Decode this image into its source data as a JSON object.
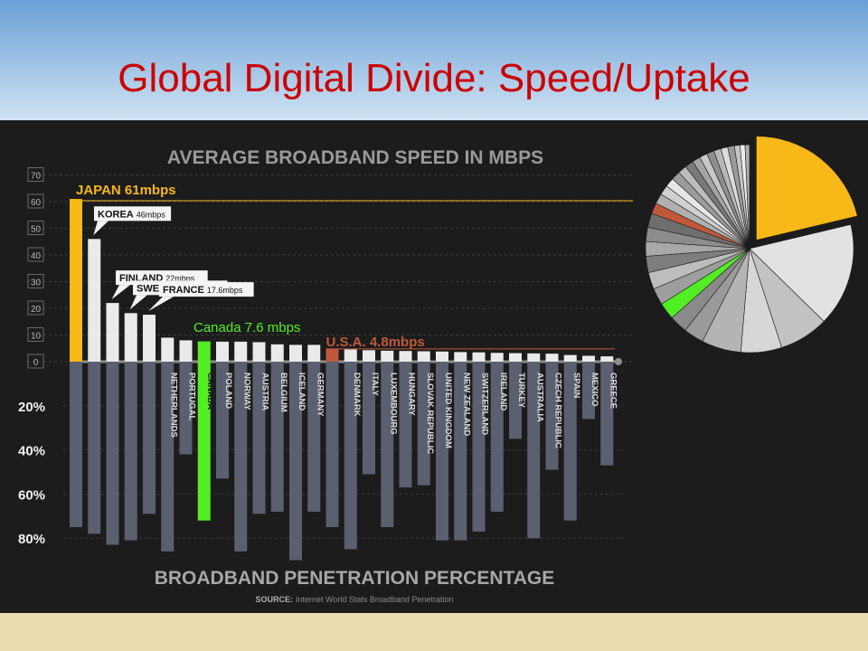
{
  "slide": {
    "title": "Global Digital Divide: Speed/Uptake"
  },
  "chart_data": {
    "type": "bar",
    "title": "AVERAGE BROADBAND SPEED IN MBPS",
    "bottom_title": "BROADBAND PENETRATION PERCENTAGE",
    "source_label": "SOURCE:",
    "source_text": "Internet World Stats Broadband Penetration",
    "speed_ticks": [
      "70",
      "60",
      "50",
      "40",
      "30",
      "20",
      "10",
      "0"
    ],
    "penetration_ticks": [
      "20%",
      "40%",
      "60%",
      "80%"
    ],
    "speed_ylim": [
      0,
      70
    ],
    "penetration_ylim": [
      0,
      80
    ],
    "categories": [
      "JAPAN",
      "KOREA",
      "FINLAND",
      "SWEDEN",
      "FRANCE",
      "NETHERLANDS",
      "PORTUGAL",
      "CANADA",
      "POLAND",
      "NORWAY",
      "AUSTRIA",
      "BELGIUM",
      "ICELAND",
      "GERMANY",
      "U.S.A.",
      "DENMARK",
      "ITALY",
      "LUXEMBOURG",
      "HUNGARY",
      "SLOVAK REPUBLIC",
      "UNITED KINGDOM",
      "NEW ZEALAND",
      "SWITZERLAND",
      "IRELAND",
      "TURKEY",
      "AUSTRALIA",
      "CZECH REPUBLIC",
      "SPAIN",
      "MEXICO",
      "GREECE"
    ],
    "axis_label_visible": [
      false,
      false,
      false,
      false,
      false,
      true,
      true,
      true,
      true,
      true,
      true,
      true,
      true,
      true,
      false,
      true,
      true,
      true,
      true,
      true,
      true,
      true,
      true,
      true,
      true,
      true,
      true,
      true,
      true,
      true
    ],
    "series": [
      {
        "name": "speed",
        "values": [
          61,
          46,
          22,
          18.2,
          17.6,
          9,
          8,
          7.6,
          7.5,
          7.5,
          7.3,
          6.5,
          6.3,
          6.3,
          4.8,
          4.6,
          4.3,
          4.1,
          4,
          3.9,
          3.8,
          3.6,
          3.5,
          3.3,
          3.2,
          3.1,
          3,
          2.5,
          2.2,
          2
        ]
      },
      {
        "name": "penetration",
        "values": [
          75,
          78,
          83,
          81,
          69,
          86,
          42,
          72,
          53,
          86,
          69,
          68,
          90,
          68,
          75,
          85,
          51,
          75,
          57,
          56,
          81,
          81,
          77,
          68,
          35,
          80,
          49,
          72,
          26,
          47
        ]
      }
    ],
    "callouts": [
      {
        "name": "JAPAN",
        "value": "61mbps"
      },
      {
        "name": "KOREA",
        "value": "46mbps"
      },
      {
        "name": "FINLAND",
        "value": "22mbps"
      },
      {
        "name": "SWEDEN",
        "value": "18.2mbps"
      },
      {
        "name": "FRANCE",
        "value": "17.6mbps"
      }
    ],
    "canada_label": "Canada 7.6 mbps",
    "usa_label": "U.S.A. 4.8mbps",
    "colors": {
      "japan": "#f7b818",
      "canada": "#52ee24",
      "usa": "#c0593a",
      "speed_bar": "#eaeaea",
      "penetration_bar": "#5b6070",
      "panel": "#1c1c1c"
    },
    "pie": {
      "slices": [
        {
          "value": 61,
          "color": "#f7b818"
        },
        {
          "value": 46,
          "color": "#e2e2e2"
        },
        {
          "value": 22,
          "color": "#c2c2c2"
        },
        {
          "value": 18.2,
          "color": "#d7d7d7"
        },
        {
          "value": 17.6,
          "color": "#b4b4b4"
        },
        {
          "value": 9,
          "color": "#9a9a9a"
        },
        {
          "value": 8,
          "color": "#8a8a8a"
        },
        {
          "value": 7.6,
          "color": "#52ee24"
        },
        {
          "value": 7.5,
          "color": "#9e9e9e"
        },
        {
          "value": 7.5,
          "color": "#bdbdbd"
        },
        {
          "value": 7.3,
          "color": "#7e7e7e"
        },
        {
          "value": 6.5,
          "color": "#a8a8a8"
        },
        {
          "value": 6.3,
          "color": "#8c8c8c"
        },
        {
          "value": 6.3,
          "color": "#6e6e6e"
        },
        {
          "value": 4.8,
          "color": "#c0593a"
        },
        {
          "value": 4.6,
          "color": "#b0b0b0"
        },
        {
          "value": 4.3,
          "color": "#d0d0d0"
        },
        {
          "value": 4.1,
          "color": "#e6e6e6"
        },
        {
          "value": 4,
          "color": "#9c9c9c"
        },
        {
          "value": 3.9,
          "color": "#bcbcbc"
        },
        {
          "value": 3.8,
          "color": "#7a7a7a"
        },
        {
          "value": 3.6,
          "color": "#a4a4a4"
        },
        {
          "value": 3.5,
          "color": "#c8c8c8"
        },
        {
          "value": 3.3,
          "color": "#8e8e8e"
        },
        {
          "value": 3.2,
          "color": "#b8b8b8"
        },
        {
          "value": 3.1,
          "color": "#dcdcdc"
        },
        {
          "value": 3,
          "color": "#9a9a9a"
        },
        {
          "value": 2.5,
          "color": "#c4c4c4"
        },
        {
          "value": 2.2,
          "color": "#ececec"
        },
        {
          "value": 2,
          "color": "#acacac"
        }
      ]
    }
  }
}
